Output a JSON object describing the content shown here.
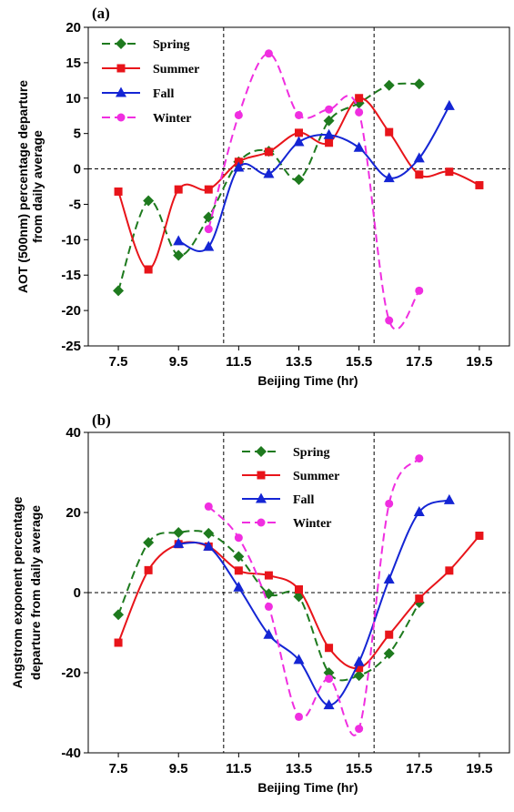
{
  "chart_data": [
    {
      "type": "line",
      "panel_label": "(a)",
      "xlabel": "Beijing Time (hr)",
      "ylabel_lines": [
        "AOT (500nm) percentage departure",
        "from daily average"
      ],
      "xlim": [
        6.5,
        20.5
      ],
      "ylim": [
        -25,
        20
      ],
      "xticks": [
        "7.5",
        "9.5",
        "11.5",
        "13.5",
        "15.5",
        "17.5",
        "19.5"
      ],
      "xtick_values": [
        7.5,
        9.5,
        11.5,
        13.5,
        15.5,
        17.5,
        19.5
      ],
      "yticks": [
        "-25",
        "-20",
        "-15",
        "-10",
        "-5",
        "0",
        "5",
        "10",
        "15",
        "20"
      ],
      "ytick_values": [
        -25,
        -20,
        -15,
        -10,
        -5,
        0,
        5,
        10,
        15,
        20
      ],
      "vlines": [
        11,
        16
      ],
      "hline": 0,
      "legend_position": "top-left",
      "series": [
        {
          "name": "Spring",
          "color": "#1e7a1e",
          "dash": "dashed",
          "marker": "diamond",
          "x": [
            7.5,
            8.5,
            9.5,
            10.5,
            11.5,
            12.5,
            13.5,
            14.5,
            15.5,
            16.5,
            17.5
          ],
          "y": [
            -17.2,
            -4.5,
            -12.2,
            -6.8,
            1.0,
            2.5,
            -1.5,
            6.8,
            9.3,
            11.8,
            12.0
          ]
        },
        {
          "name": "Summer",
          "color": "#e8141a",
          "dash": "solid",
          "marker": "square",
          "x": [
            7.5,
            8.5,
            9.5,
            10.5,
            11.5,
            12.5,
            13.5,
            14.5,
            15.5,
            16.5,
            17.5,
            18.5,
            19.5
          ],
          "y": [
            -3.2,
            -14.2,
            -2.9,
            -2.9,
            1.0,
            2.4,
            5.1,
            3.7,
            10.0,
            5.2,
            -0.8,
            -0.4,
            -2.3
          ]
        },
        {
          "name": "Fall",
          "color": "#1425d4",
          "dash": "solid",
          "marker": "triangle",
          "x": [
            9.5,
            10.5,
            11.5,
            12.5,
            13.5,
            14.5,
            15.5,
            16.5,
            17.5,
            18.5
          ],
          "y": [
            -10.2,
            -11.0,
            0.2,
            -0.7,
            3.8,
            4.8,
            3.0,
            -1.3,
            1.5,
            8.9
          ]
        },
        {
          "name": "Winter",
          "color": "#f02ee0",
          "dash": "dashed",
          "marker": "circle",
          "x": [
            10.5,
            11.5,
            12.5,
            13.5,
            14.5,
            15.5,
            16.5,
            17.5
          ],
          "y": [
            -8.5,
            7.6,
            16.3,
            7.6,
            8.4,
            8.0,
            -21.4,
            -17.2
          ]
        }
      ]
    },
    {
      "type": "line",
      "panel_label": "(b)",
      "xlabel": "Beijing Time (hr)",
      "ylabel_lines": [
        "Angstrom exponent percentage",
        "departure from daily average"
      ],
      "xlim": [
        6.5,
        20.5
      ],
      "ylim": [
        -40,
        40
      ],
      "xticks": [
        "7.5",
        "9.5",
        "11.5",
        "13.5",
        "15.5",
        "17.5",
        "19.5"
      ],
      "xtick_values": [
        7.5,
        9.5,
        11.5,
        13.5,
        15.5,
        17.5,
        19.5
      ],
      "yticks": [
        "-40",
        "-20",
        "0",
        "20",
        "40"
      ],
      "ytick_values": [
        -40,
        -20,
        0,
        20,
        40
      ],
      "vlines": [
        11,
        16
      ],
      "hline": 0,
      "legend_position": "top-center",
      "series": [
        {
          "name": "Spring",
          "color": "#1e7a1e",
          "dash": "dashed",
          "marker": "diamond",
          "x": [
            7.5,
            8.5,
            9.5,
            10.5,
            11.5,
            12.5,
            13.5,
            14.5,
            15.5,
            16.5,
            17.5
          ],
          "y": [
            -5.5,
            12.5,
            15.0,
            14.8,
            9.0,
            -0.3,
            -1.0,
            -20.0,
            -20.7,
            -15.2,
            -2.5
          ]
        },
        {
          "name": "Summer",
          "color": "#e8141a",
          "dash": "solid",
          "marker": "square",
          "x": [
            7.5,
            8.5,
            9.5,
            10.5,
            11.5,
            12.5,
            13.5,
            14.5,
            15.5,
            16.5,
            17.5,
            18.5,
            19.5
          ],
          "y": [
            -12.5,
            5.6,
            12.1,
            11.5,
            5.5,
            4.3,
            0.8,
            -13.8,
            -18.8,
            -10.5,
            -1.5,
            5.5,
            14.2
          ]
        },
        {
          "name": "Fall",
          "color": "#1425d4",
          "dash": "solid",
          "marker": "triangle",
          "x": [
            9.5,
            10.5,
            11.5,
            12.5,
            13.5,
            14.5,
            15.5,
            16.5,
            17.5,
            18.5
          ],
          "y": [
            12.2,
            11.5,
            1.3,
            -10.5,
            -16.8,
            -28.1,
            -17.3,
            3.3,
            20.1,
            23.1
          ]
        },
        {
          "name": "Winter",
          "color": "#f02ee0",
          "dash": "dashed",
          "marker": "circle",
          "x": [
            10.5,
            11.5,
            12.5,
            13.5,
            14.5,
            15.5,
            16.5,
            17.5
          ],
          "y": [
            21.5,
            13.7,
            -3.5,
            -31.0,
            -21.5,
            -34.0,
            22.2,
            33.5
          ]
        }
      ]
    }
  ]
}
